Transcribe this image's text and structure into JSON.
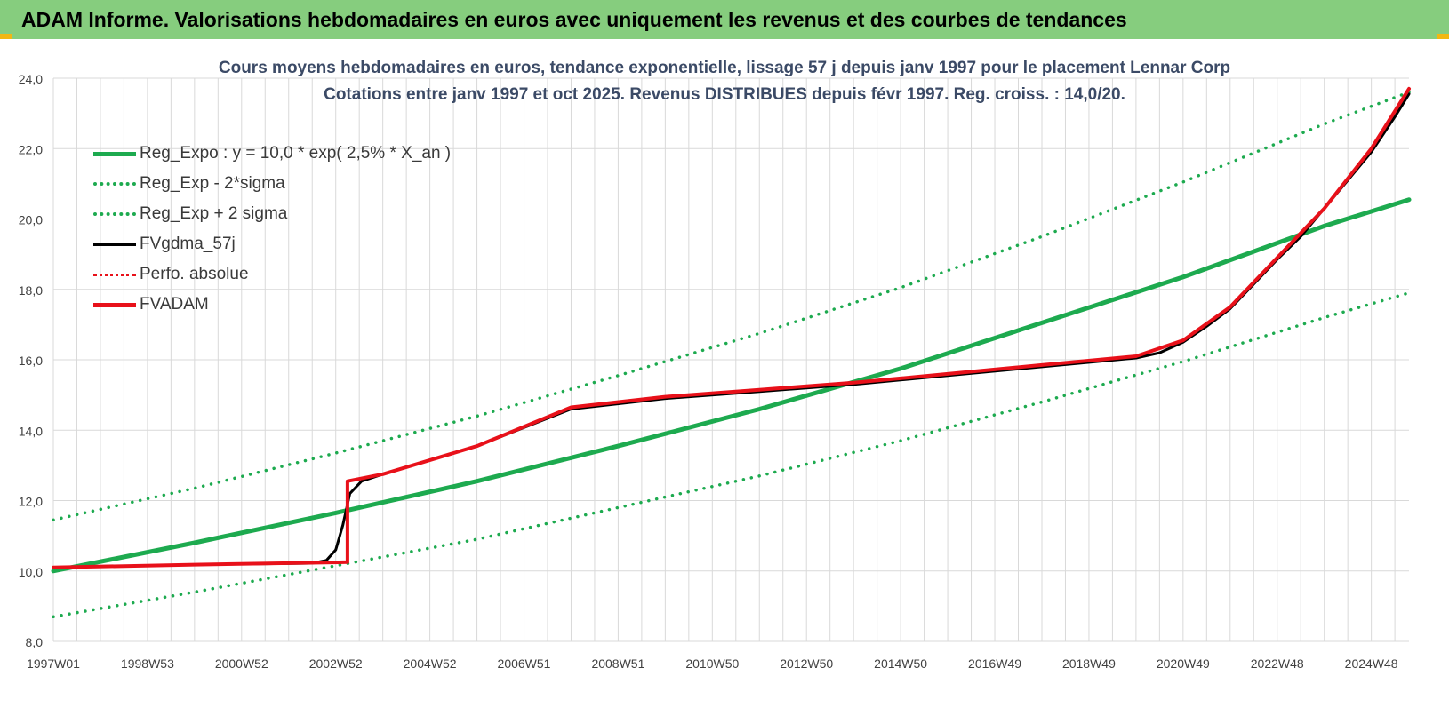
{
  "header": {
    "title": "ADAM Informe. Valorisations hebdomadaires en euros avec uniquement les revenus et des courbes de tendances"
  },
  "colors": {
    "banner": "#86cd7e",
    "reg_green": "#1daa4f",
    "black": "#000000",
    "red": "#e8111a",
    "grid": "#d9d9d9"
  },
  "chart_data": {
    "type": "line",
    "title": "Cours moyens hebdomadaires en euros, tendance exponentielle, lissage 57 j depuis janv 1997 pour le placement Lennar Corp",
    "subtitle": "Cotations entre janv 1997 et oct 2025. Revenus DISTRIBUES depuis févr 1997. Reg. croiss. : 14,0/20.",
    "xlabel": "",
    "ylabel": "",
    "ylim": [
      8,
      24
    ],
    "xlim": [
      1997.0,
      2025.8
    ],
    "grid": true,
    "legend_position": "top-left",
    "y_ticks": [
      "8,0",
      "10,0",
      "12,0",
      "14,0",
      "16,0",
      "18,0",
      "20,0",
      "22,0",
      "24,0"
    ],
    "x_ticks": [
      {
        "label": "1997W01",
        "x": 1997.0
      },
      {
        "label": "1998W53",
        "x": 1999.0
      },
      {
        "label": "2000W52",
        "x": 2001.0
      },
      {
        "label": "2002W52",
        "x": 2003.0
      },
      {
        "label": "2004W52",
        "x": 2005.0
      },
      {
        "label": "2006W51",
        "x": 2007.0
      },
      {
        "label": "2008W51",
        "x": 2009.0
      },
      {
        "label": "2010W50",
        "x": 2011.0
      },
      {
        "label": "2012W50",
        "x": 2013.0
      },
      {
        "label": "2014W50",
        "x": 2015.0
      },
      {
        "label": "2016W49",
        "x": 2017.0
      },
      {
        "label": "2018W49",
        "x": 2019.0
      },
      {
        "label": "2020W49",
        "x": 2021.0
      },
      {
        "label": "2022W48",
        "x": 2023.0
      },
      {
        "label": "2024W48",
        "x": 2025.0
      }
    ],
    "series": [
      {
        "name": "Reg_Expo : y = 10,0 * exp( 2,5% *  X_an )",
        "style": "solid",
        "color": "#1daa4f",
        "x": [
          1997.0,
          2000.0,
          2003.0,
          2006.0,
          2009.0,
          2012.0,
          2015.0,
          2018.0,
          2021.0,
          2024.0,
          2025.8
        ],
        "values": [
          10.0,
          10.8,
          11.65,
          12.55,
          13.55,
          14.6,
          15.75,
          17.05,
          18.35,
          19.8,
          20.55
        ]
      },
      {
        "name": "Reg_Exp - 2*sigma",
        "style": "dotted",
        "color": "#1daa4f",
        "x": [
          1997.0,
          2000.0,
          2003.0,
          2006.0,
          2009.0,
          2012.0,
          2015.0,
          2018.0,
          2021.0,
          2024.0,
          2025.8
        ],
        "values": [
          8.7,
          9.4,
          10.15,
          10.9,
          11.8,
          12.7,
          13.7,
          14.8,
          15.95,
          17.2,
          17.9
        ]
      },
      {
        "name": "Reg_Exp + 2 sigma",
        "style": "dotted",
        "color": "#1daa4f",
        "x": [
          1997.0,
          2000.0,
          2003.0,
          2006.0,
          2009.0,
          2012.0,
          2015.0,
          2018.0,
          2021.0,
          2024.0,
          2025.8
        ],
        "values": [
          11.45,
          12.35,
          13.35,
          14.4,
          15.55,
          16.75,
          18.05,
          19.5,
          21.05,
          22.7,
          23.6
        ]
      },
      {
        "name": "FVgdma_57j",
        "style": "solid",
        "color": "#000000",
        "x": [
          1997.0,
          2000.0,
          2002.5,
          2002.8,
          2003.0,
          2003.15,
          2003.3,
          2003.55,
          2004.0,
          2006.0,
          2008.0,
          2010.0,
          2012.0,
          2014.0,
          2016.0,
          2018.0,
          2020.0,
          2020.5,
          2021.0,
          2021.5,
          2022.0,
          2022.5,
          2023.0,
          2023.5,
          2024.0,
          2024.5,
          2025.0,
          2025.5,
          2025.8
        ],
        "values": [
          10.1,
          10.18,
          10.22,
          10.3,
          10.6,
          11.3,
          12.2,
          12.55,
          12.75,
          13.55,
          14.6,
          14.9,
          15.1,
          15.3,
          15.55,
          15.8,
          16.05,
          16.2,
          16.5,
          16.95,
          17.45,
          18.15,
          18.85,
          19.5,
          20.3,
          21.1,
          21.9,
          22.9,
          23.55
        ]
      },
      {
        "name": "Perfo. absolue",
        "style": "dotted",
        "color": "#e8111a",
        "x": [
          1997.0,
          2000.0,
          2003.25,
          2003.25,
          2004.0,
          2006.0,
          2008.0,
          2010.0,
          2012.0,
          2014.0,
          2016.0,
          2018.0,
          2020.0,
          2021.0,
          2022.0,
          2023.0,
          2024.0,
          2025.0,
          2025.8
        ],
        "values": [
          10.1,
          10.18,
          10.25,
          12.55,
          12.75,
          13.55,
          14.65,
          14.95,
          15.15,
          15.35,
          15.6,
          15.85,
          16.1,
          16.55,
          17.5,
          18.9,
          20.3,
          22.0,
          23.7
        ]
      },
      {
        "name": "FVADAM",
        "style": "solid",
        "color": "#e8111a",
        "x": [
          1997.0,
          2000.0,
          2003.25,
          2003.25,
          2004.0,
          2006.0,
          2008.0,
          2010.0,
          2012.0,
          2014.0,
          2016.0,
          2018.0,
          2020.0,
          2021.0,
          2022.0,
          2023.0,
          2024.0,
          2025.0,
          2025.8
        ],
        "values": [
          10.1,
          10.18,
          10.25,
          12.55,
          12.75,
          13.55,
          14.65,
          14.95,
          15.15,
          15.35,
          15.6,
          15.85,
          16.1,
          16.55,
          17.5,
          18.9,
          20.3,
          22.0,
          23.7
        ]
      }
    ]
  }
}
